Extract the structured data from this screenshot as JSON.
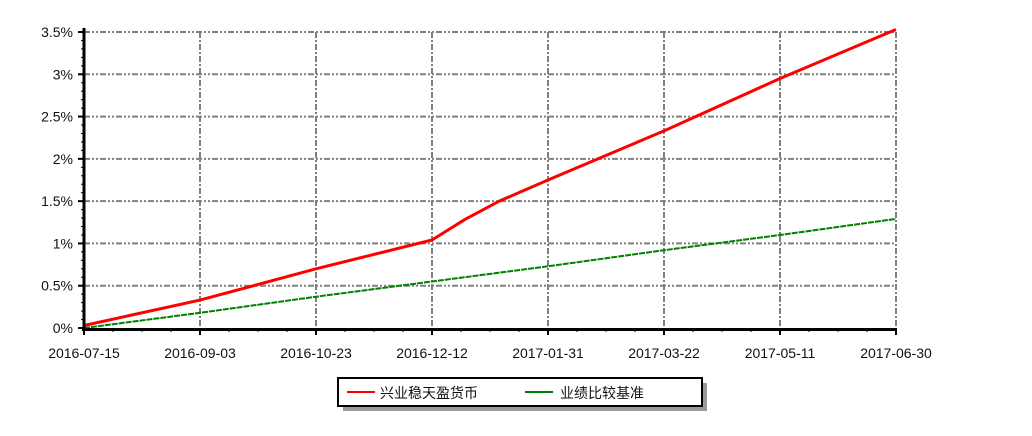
{
  "chart_data": {
    "type": "line",
    "title": "",
    "xlabel": "",
    "ylabel": "",
    "x_ticks": [
      "2016-07-15",
      "2016-09-03",
      "2016-10-23",
      "2016-12-12",
      "2017-01-31",
      "2017-03-22",
      "2017-05-11",
      "2017-06-30"
    ],
    "y_ticks": [
      "0%",
      "0.5%",
      "1%",
      "1.5%",
      "2%",
      "2.5%",
      "3%",
      "3.5%"
    ],
    "ylim": [
      0,
      3.5
    ],
    "xlim": [
      "2016-07-15",
      "2017-06-30"
    ],
    "grid": true,
    "legend_position": "bottom",
    "series": [
      {
        "name": "兴业稳天盈货币",
        "color": "#ff0000",
        "points": [
          [
            "2016-07-15",
            0.03
          ],
          [
            "2016-09-03",
            0.33
          ],
          [
            "2016-10-23",
            0.7
          ],
          [
            "2016-12-12",
            1.04
          ],
          [
            "2016-12-26",
            1.28
          ],
          [
            "2017-01-10",
            1.5
          ],
          [
            "2017-01-31",
            1.75
          ],
          [
            "2017-03-22",
            2.33
          ],
          [
            "2017-05-11",
            2.95
          ],
          [
            "2017-06-30",
            3.53
          ]
        ]
      },
      {
        "name": "业绩比较基准",
        "color": "#008000",
        "points": [
          [
            "2016-07-15",
            0.0
          ],
          [
            "2016-09-03",
            0.18
          ],
          [
            "2016-10-23",
            0.37
          ],
          [
            "2016-12-12",
            0.55
          ],
          [
            "2017-01-31",
            0.73
          ],
          [
            "2017-03-22",
            0.92
          ],
          [
            "2017-05-11",
            1.1
          ],
          [
            "2017-06-30",
            1.29
          ]
        ]
      }
    ]
  }
}
